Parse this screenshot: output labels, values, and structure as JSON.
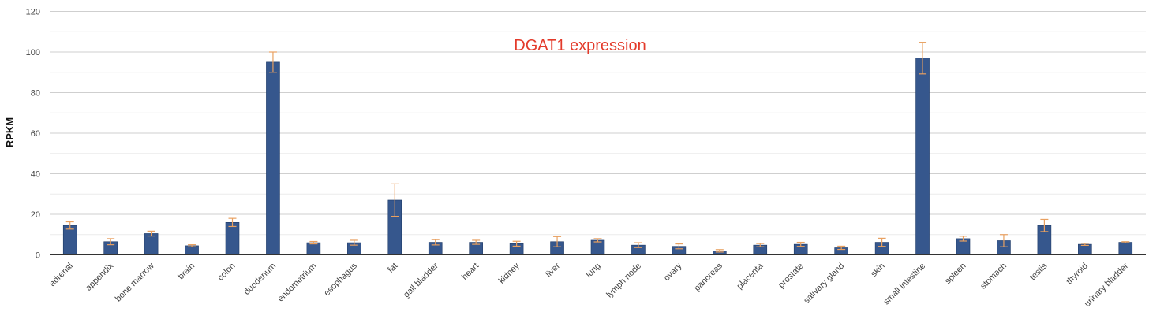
{
  "chart_data": {
    "type": "bar",
    "title": "DGAT1 expression",
    "xlabel": "",
    "ylabel": "RPKM",
    "ylim": [
      0,
      120
    ],
    "yticks": [
      0,
      20,
      40,
      60,
      80,
      100,
      120
    ],
    "grid": true,
    "legend": "none",
    "categories": [
      "adrenal",
      "appendix",
      "bone marrow",
      "brain",
      "colon",
      "duodenum",
      "endometrium",
      "esophagus",
      "fat",
      "gall bladder",
      "heart",
      "kidney",
      "liver",
      "lung",
      "lymph node",
      "ovary",
      "pancreas",
      "placenta",
      "prostate",
      "salivary gland",
      "skin",
      "small intestine",
      "spleen",
      "stomach",
      "testis",
      "thyroid",
      "urinary bladder"
    ],
    "values": [
      14.5,
      6.5,
      10.5,
      4.5,
      16,
      95,
      6,
      6,
      27,
      6.2,
      6.2,
      5.5,
      6.5,
      7.2,
      4.8,
      4.2,
      2,
      4.8,
      5.2,
      3.5,
      6.2,
      97,
      8,
      7,
      14.5,
      5.2,
      6.2
    ],
    "errors": [
      1.8,
      1.5,
      1.2,
      0.5,
      2,
      5,
      0.6,
      1.2,
      8,
      1.3,
      1,
      1.2,
      2.5,
      0.8,
      1.2,
      1.2,
      0.6,
      0.8,
      1,
      0.8,
      2,
      7.8,
      1.2,
      3,
      3,
      0.5,
      0.3
    ]
  },
  "colors": {
    "bar": "#36578d",
    "bar_edge": "#1e3a66",
    "error_bar": "#e8a060",
    "grid": "#d9d9d9",
    "title": "#e33a2a"
  }
}
